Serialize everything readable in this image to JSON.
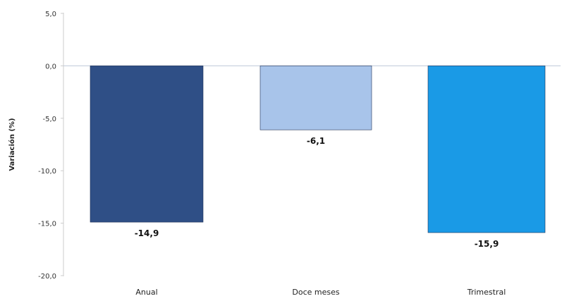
{
  "chart_data": {
    "type": "bar",
    "title": "",
    "xlabel": "",
    "ylabel": "Variación (%)",
    "ylim": [
      -20.0,
      5.0
    ],
    "yticks": [
      "5,0",
      "0,0",
      "-5,0",
      "-10,0",
      "-15,0",
      "-20,0"
    ],
    "categories": [
      "Anual",
      "Doce meses",
      "Trimestral"
    ],
    "values": [
      -14.9,
      -6.1,
      -15.9
    ],
    "data_labels": [
      "-14,9",
      "-6,1",
      "-15,9"
    ],
    "colors": [
      "#2f4f86",
      "#a8c4ea",
      "#1a9ae6"
    ],
    "grid": false,
    "legend": "none"
  }
}
